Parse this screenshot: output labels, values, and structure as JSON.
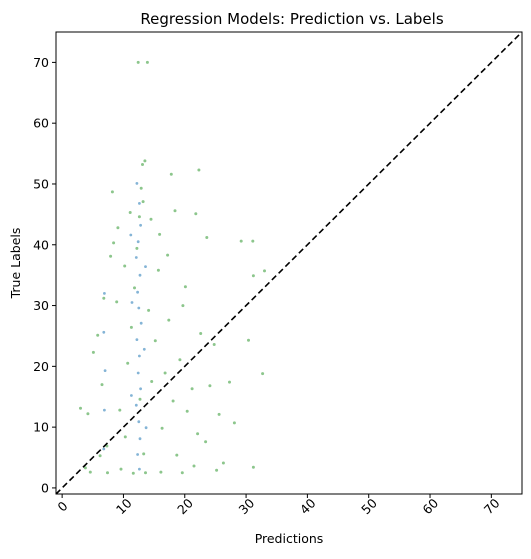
{
  "chart_data": {
    "type": "scatter",
    "title": "Regression Models: Prediction vs. Labels",
    "xlabel": "Predictions",
    "ylabel": "True Labels",
    "xlim": [
      -1,
      75
    ],
    "ylim": [
      -1,
      75
    ],
    "x_ticks": [
      0,
      10,
      20,
      30,
      40,
      50,
      60,
      70
    ],
    "y_ticks": [
      0,
      10,
      20,
      30,
      40,
      50,
      60,
      70
    ],
    "x_tick_rotation_deg": 45,
    "grid": false,
    "legend": "none",
    "reference_line": {
      "label": "",
      "from": [
        -1,
        -1
      ],
      "to": [
        75,
        75
      ],
      "style": "dashed",
      "color": "#000000"
    },
    "series": [
      {
        "marker_color": "#008000",
        "alpha": 0.45,
        "points": [
          [
            12.4,
            70.0
          ],
          [
            13.9,
            70.0
          ],
          [
            13.5,
            53.8
          ],
          [
            13.1,
            53.2
          ],
          [
            22.3,
            52.3
          ],
          [
            17.8,
            51.6
          ],
          [
            8.2,
            48.7
          ],
          [
            13.2,
            47.1
          ],
          [
            11.1,
            45.3
          ],
          [
            12.6,
            44.6
          ],
          [
            21.8,
            45.1
          ],
          [
            29.2,
            40.6
          ],
          [
            31.1,
            40.6
          ],
          [
            23.6,
            41.2
          ],
          [
            33.0,
            35.7
          ],
          [
            31.2,
            34.9
          ],
          [
            30.4,
            24.3
          ],
          [
            32.7,
            18.8
          ],
          [
            27.3,
            17.4
          ],
          [
            31.2,
            3.4
          ],
          [
            28.1,
            10.7
          ],
          [
            24.8,
            23.6
          ],
          [
            26.3,
            4.1
          ],
          [
            25.2,
            2.9
          ],
          [
            19.7,
            30.0
          ],
          [
            20.4,
            12.6
          ],
          [
            22.1,
            8.9
          ],
          [
            21.5,
            3.6
          ],
          [
            3.0,
            13.1
          ],
          [
            4.2,
            12.2
          ],
          [
            5.1,
            22.3
          ],
          [
            3.8,
            3.3
          ],
          [
            6.8,
            31.2
          ],
          [
            6.5,
            17.0
          ],
          [
            7.3,
            6.9
          ],
          [
            7.9,
            38.1
          ],
          [
            8.4,
            40.3
          ],
          [
            9.1,
            42.8
          ],
          [
            9.6,
            3.1
          ],
          [
            10.3,
            8.4
          ],
          [
            10.7,
            20.5
          ],
          [
            11.3,
            26.4
          ],
          [
            11.8,
            32.9
          ],
          [
            12.2,
            39.4
          ],
          [
            12.7,
            14.6
          ],
          [
            13.3,
            5.6
          ],
          [
            14.1,
            29.2
          ],
          [
            14.6,
            17.5
          ],
          [
            15.2,
            24.2
          ],
          [
            15.7,
            35.8
          ],
          [
            16.3,
            9.8
          ],
          [
            16.8,
            18.9
          ],
          [
            17.4,
            27.6
          ],
          [
            18.1,
            14.3
          ],
          [
            18.7,
            5.4
          ],
          [
            19.2,
            21.1
          ],
          [
            20.1,
            33.1
          ],
          [
            21.2,
            16.3
          ],
          [
            22.6,
            25.4
          ],
          [
            23.4,
            7.6
          ],
          [
            24.1,
            16.8
          ],
          [
            25.6,
            12.1
          ],
          [
            14.5,
            44.2
          ],
          [
            15.9,
            41.7
          ],
          [
            17.2,
            38.3
          ],
          [
            10.2,
            36.5
          ],
          [
            8.9,
            30.6
          ],
          [
            9.4,
            12.8
          ],
          [
            5.8,
            25.1
          ],
          [
            6.2,
            5.3
          ],
          [
            16.1,
            2.6
          ],
          [
            19.6,
            2.5
          ],
          [
            11.6,
            2.4
          ],
          [
            13.6,
            2.5
          ],
          [
            7.4,
            2.5
          ],
          [
            4.6,
            2.6
          ],
          [
            18.4,
            45.6
          ],
          [
            12.9,
            49.3
          ]
        ]
      }
    ],
    "band_series": [
      {
        "marker_color": "#1f77b4",
        "x_center": 12.5,
        "points": [
          [
            12.2,
            50.1
          ],
          [
            12.6,
            46.8
          ],
          [
            12.8,
            43.2
          ],
          [
            12.4,
            40.5
          ],
          [
            12.1,
            37.9
          ],
          [
            12.7,
            35.0
          ],
          [
            12.3,
            32.2
          ],
          [
            12.5,
            29.6
          ],
          [
            12.9,
            27.1
          ],
          [
            12.2,
            24.4
          ],
          [
            12.6,
            21.7
          ],
          [
            12.4,
            18.9
          ],
          [
            12.8,
            16.3
          ],
          [
            12.1,
            13.6
          ],
          [
            12.5,
            10.9
          ],
          [
            12.7,
            8.1
          ],
          [
            12.3,
            5.5
          ],
          [
            12.6,
            3.1
          ],
          [
            11.2,
            41.6
          ],
          [
            11.4,
            30.5
          ],
          [
            11.3,
            15.2
          ],
          [
            13.6,
            36.4
          ],
          [
            13.4,
            22.8
          ],
          [
            13.7,
            9.9
          ],
          [
            6.9,
            32.0
          ],
          [
            6.8,
            25.6
          ],
          [
            7.0,
            19.3
          ],
          [
            6.9,
            12.8
          ],
          [
            6.8,
            6.4
          ]
        ]
      }
    ]
  }
}
